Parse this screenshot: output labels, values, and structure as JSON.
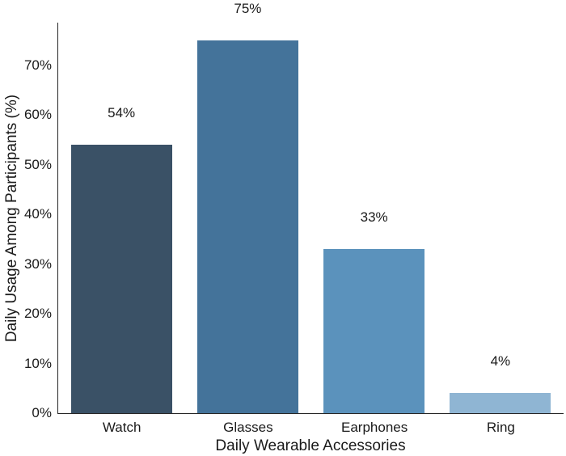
{
  "chart_data": {
    "type": "bar",
    "title": "",
    "xlabel": "Daily Wearable Accessories",
    "ylabel": "Daily Usage Among Participants (%)",
    "categories": [
      "Watch",
      "Glasses",
      "Earphones",
      "Ring"
    ],
    "values": [
      54,
      75,
      33,
      4
    ],
    "value_labels": [
      "54%",
      "75%",
      "33%",
      "4%"
    ],
    "bar_colors": [
      "#3a5166",
      "#44739a",
      "#5b92bc",
      "#8fb5d3"
    ],
    "ylim": [
      0,
      78.6
    ],
    "ytick_values": [
      0,
      10,
      20,
      30,
      40,
      50,
      60,
      70
    ],
    "ytick_labels": [
      "0%",
      "10%",
      "20%",
      "30%",
      "40%",
      "50%",
      "60%",
      "70%"
    ],
    "grid": false,
    "legend_position": "none"
  },
  "colors": {
    "background": "#ffffff",
    "spine": "#262626",
    "text": "#1a1a1a"
  }
}
